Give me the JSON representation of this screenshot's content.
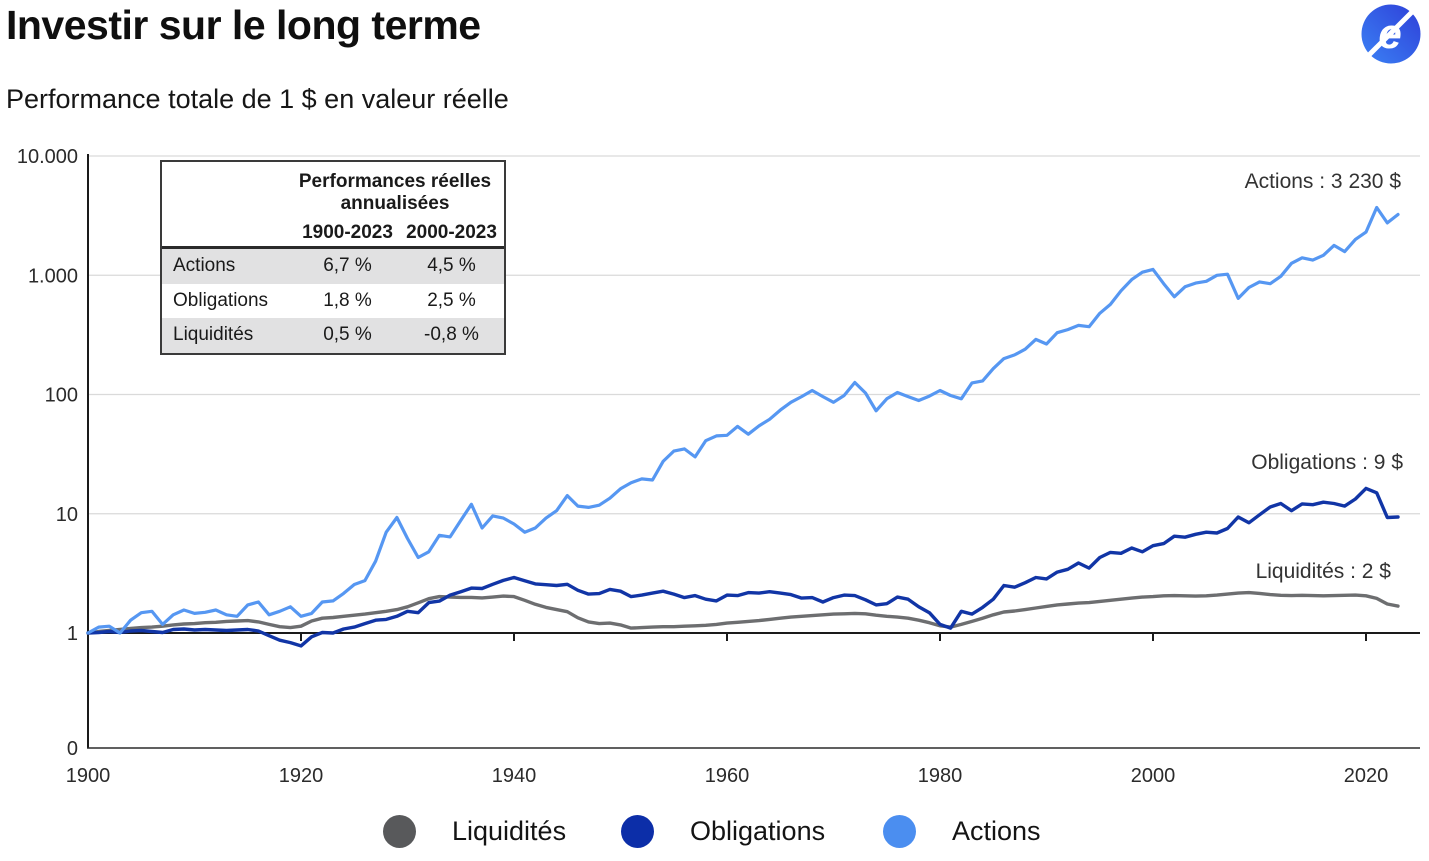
{
  "page": {
    "title": "Investir sur le long terme",
    "subtitle": "Performance totale de 1 $ en valeur réelle"
  },
  "logo": {
    "letter": "e",
    "color_top": "#2e3fd8",
    "color_bottom": "#3b82f5"
  },
  "inset_table": {
    "header_line1": "Performances réelles",
    "header_line2": "annualisées",
    "col_headers": [
      "1900-2023",
      "2000-2023"
    ],
    "rows": [
      {
        "label": "Actions",
        "values": [
          "6,7 %",
          "4,5 %"
        ]
      },
      {
        "label": "Obligations",
        "values": [
          "1,8 %",
          "2,5 %"
        ]
      },
      {
        "label": "Liquidités",
        "values": [
          "0,5 %",
          "-0,8 %"
        ]
      }
    ]
  },
  "legend": {
    "items": [
      {
        "label": "Liquidités",
        "color": "#58595b"
      },
      {
        "label": "Obligations",
        "color": "#0c2ea8"
      },
      {
        "label": "Actions",
        "color": "#4b8ef0"
      }
    ]
  },
  "chart_data": {
    "type": "line",
    "title": "Performance totale de 1 $ en valeur réelle",
    "x_axis": {
      "ticks": [
        1900,
        1920,
        1940,
        1960,
        1980,
        2000,
        2020
      ],
      "range": [
        1900,
        2023
      ]
    },
    "y_axis": {
      "scale": "log",
      "tick_labels": [
        "10.000",
        "1.000",
        "100",
        "10",
        "1",
        "0"
      ],
      "tick_values": [
        10000,
        1000,
        100,
        10,
        1,
        0
      ]
    },
    "grid": true,
    "legend_position": "bottom",
    "years": [
      1900,
      1901,
      1902,
      1903,
      1904,
      1905,
      1906,
      1907,
      1908,
      1909,
      1910,
      1911,
      1912,
      1913,
      1914,
      1915,
      1916,
      1917,
      1918,
      1919,
      1920,
      1921,
      1922,
      1923,
      1924,
      1925,
      1926,
      1927,
      1928,
      1929,
      1930,
      1931,
      1932,
      1933,
      1934,
      1935,
      1936,
      1937,
      1938,
      1939,
      1940,
      1941,
      1942,
      1943,
      1944,
      1945,
      1946,
      1947,
      1948,
      1949,
      1950,
      1951,
      1952,
      1953,
      1954,
      1955,
      1956,
      1957,
      1958,
      1959,
      1960,
      1961,
      1962,
      1963,
      1964,
      1965,
      1966,
      1967,
      1968,
      1969,
      1970,
      1971,
      1972,
      1973,
      1974,
      1975,
      1976,
      1977,
      1978,
      1979,
      1980,
      1981,
      1982,
      1983,
      1984,
      1985,
      1986,
      1987,
      1988,
      1989,
      1990,
      1991,
      1992,
      1993,
      1994,
      1995,
      1996,
      1997,
      1998,
      1999,
      2000,
      2001,
      2002,
      2003,
      2004,
      2005,
      2006,
      2007,
      2008,
      2009,
      2010,
      2011,
      2012,
      2013,
      2014,
      2015,
      2016,
      2017,
      2018,
      2019,
      2020,
      2021,
      2022,
      2023
    ],
    "series": [
      {
        "name": "Liquidités",
        "color": "#6d6e70",
        "end_label": "Liquidités : 2 $",
        "final_value": 2,
        "values": [
          1.0,
          1.03,
          1.05,
          1.07,
          1.09,
          1.11,
          1.12,
          1.14,
          1.17,
          1.19,
          1.2,
          1.22,
          1.23,
          1.25,
          1.26,
          1.27,
          1.24,
          1.18,
          1.13,
          1.11,
          1.14,
          1.26,
          1.33,
          1.35,
          1.38,
          1.41,
          1.44,
          1.48,
          1.52,
          1.57,
          1.66,
          1.79,
          1.94,
          2.02,
          2.0,
          1.99,
          1.99,
          1.97,
          2.0,
          2.04,
          2.02,
          1.88,
          1.74,
          1.64,
          1.57,
          1.51,
          1.34,
          1.24,
          1.2,
          1.21,
          1.17,
          1.1,
          1.11,
          1.12,
          1.13,
          1.13,
          1.14,
          1.15,
          1.16,
          1.18,
          1.21,
          1.23,
          1.25,
          1.27,
          1.3,
          1.33,
          1.36,
          1.38,
          1.4,
          1.42,
          1.44,
          1.45,
          1.46,
          1.45,
          1.41,
          1.38,
          1.36,
          1.33,
          1.28,
          1.22,
          1.15,
          1.12,
          1.18,
          1.25,
          1.33,
          1.42,
          1.5,
          1.53,
          1.57,
          1.62,
          1.67,
          1.72,
          1.75,
          1.78,
          1.8,
          1.84,
          1.88,
          1.92,
          1.96,
          2.0,
          2.02,
          2.05,
          2.06,
          2.05,
          2.04,
          2.05,
          2.08,
          2.12,
          2.16,
          2.18,
          2.15,
          2.1,
          2.07,
          2.06,
          2.07,
          2.06,
          2.05,
          2.06,
          2.07,
          2.08,
          2.05,
          1.95,
          1.75,
          1.68
        ]
      },
      {
        "name": "Obligations",
        "color": "#1135a6",
        "end_label": "Obligations : 9 $",
        "final_value": 9,
        "values": [
          1.0,
          1.01,
          1.03,
          1.01,
          1.04,
          1.05,
          1.03,
          1.01,
          1.07,
          1.08,
          1.06,
          1.07,
          1.06,
          1.05,
          1.06,
          1.07,
          1.04,
          0.95,
          0.87,
          0.83,
          0.78,
          0.93,
          1.01,
          1.0,
          1.08,
          1.12,
          1.2,
          1.28,
          1.3,
          1.38,
          1.52,
          1.48,
          1.8,
          1.85,
          2.08,
          2.22,
          2.38,
          2.36,
          2.56,
          2.76,
          2.92,
          2.74,
          2.58,
          2.54,
          2.5,
          2.56,
          2.28,
          2.12,
          2.14,
          2.32,
          2.24,
          2.02,
          2.08,
          2.16,
          2.24,
          2.12,
          1.98,
          2.06,
          1.92,
          1.86,
          2.08,
          2.06,
          2.18,
          2.16,
          2.22,
          2.16,
          2.1,
          1.96,
          1.98,
          1.82,
          1.98,
          2.08,
          2.06,
          1.9,
          1.72,
          1.76,
          2.0,
          1.92,
          1.66,
          1.48,
          1.18,
          1.1,
          1.52,
          1.44,
          1.64,
          1.92,
          2.5,
          2.42,
          2.64,
          2.92,
          2.84,
          3.24,
          3.42,
          3.86,
          3.5,
          4.3,
          4.74,
          4.66,
          5.16,
          4.8,
          5.4,
          5.62,
          6.48,
          6.36,
          6.72,
          7.0,
          6.9,
          7.52,
          9.4,
          8.4,
          9.8,
          11.4,
          12.2,
          10.6,
          12.1,
          11.9,
          12.5,
          12.2,
          11.6,
          13.3,
          16.3,
          15.0,
          9.3,
          9.4
        ]
      },
      {
        "name": "Actions",
        "color": "#5697f2",
        "end_label": "Actions : 3 230 $",
        "final_value": 3230,
        "values": [
          1.0,
          1.12,
          1.14,
          1.0,
          1.28,
          1.48,
          1.52,
          1.18,
          1.42,
          1.56,
          1.46,
          1.49,
          1.56,
          1.42,
          1.38,
          1.72,
          1.82,
          1.42,
          1.52,
          1.66,
          1.38,
          1.46,
          1.82,
          1.86,
          2.15,
          2.55,
          2.75,
          4.0,
          7.0,
          9.3,
          6.2,
          4.3,
          4.8,
          6.6,
          6.4,
          8.8,
          12.0,
          7.6,
          9.6,
          9.2,
          8.2,
          7.0,
          7.6,
          9.2,
          10.6,
          14.2,
          11.6,
          11.3,
          11.8,
          13.5,
          16.2,
          18.2,
          19.6,
          19.2,
          27.5,
          33.5,
          35.0,
          30.0,
          41.0,
          45.0,
          45.5,
          54.0,
          46.5,
          54.5,
          62.0,
          74.0,
          86.0,
          96.0,
          108.0,
          96.0,
          86.0,
          98.0,
          126.0,
          103.0,
          73.0,
          92.0,
          104.0,
          96.0,
          89.0,
          97.0,
          108.0,
          98.0,
          92.0,
          125.0,
          130.0,
          165.0,
          200.0,
          215.0,
          240.0,
          290.0,
          265.0,
          330.0,
          350.0,
          380.0,
          370.0,
          480.0,
          570.0,
          740.0,
          920.0,
          1060.0,
          1120.0,
          850.0,
          660.0,
          800.0,
          860.0,
          890.0,
          1000.0,
          1020.0,
          640.0,
          790.0,
          880.0,
          850.0,
          980.0,
          1260.0,
          1400.0,
          1340.0,
          1470.0,
          1780.0,
          1580.0,
          2000.0,
          2300.0,
          3700.0,
          2750.0,
          3230.0
        ]
      }
    ]
  }
}
